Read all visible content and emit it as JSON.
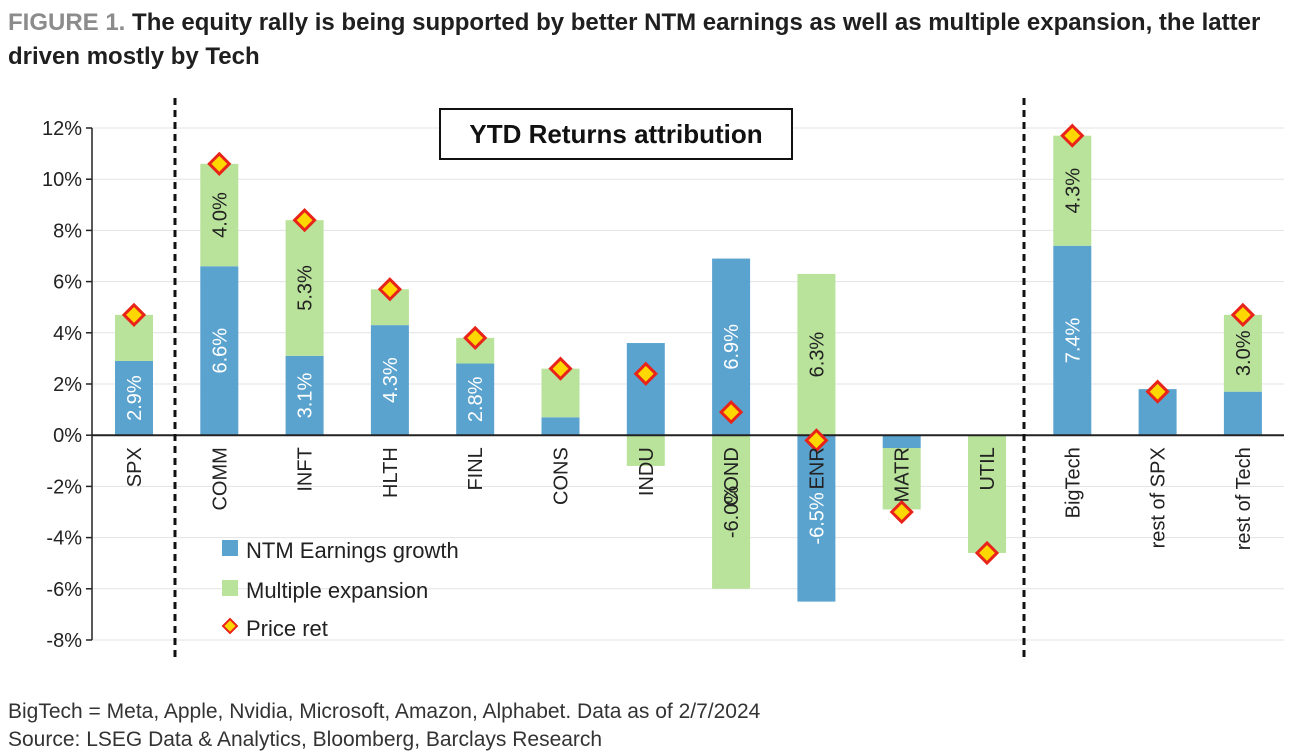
{
  "title": {
    "figure_label": "FIGURE 1.",
    "text": "The equity rally is being supported by better NTM earnings as well as multiple expansion, the latter driven mostly by Tech"
  },
  "footer": {
    "note": "BigTech = Meta, Apple, Nvidia, Microsoft, Amazon, Alphabet. Data as of 2/7/2024",
    "source": "Source: LSEG Data & Analytics, Bloomberg, Barclays Research"
  },
  "colors": {
    "earnings": "#5ba3cf",
    "multiple": "#b9e29b",
    "price_fill": "#ffd700",
    "price_stroke": "#e8241a",
    "grid": "#e3e3e3",
    "axis": "#222222"
  },
  "chart_data": {
    "type": "bar",
    "subtype": "stacked-bar-with-markers",
    "title": "YTD Returns attribution",
    "categories": [
      "SPX",
      "COMM",
      "INFT",
      "HLTH",
      "FINL",
      "CONS",
      "INDU",
      "COND",
      "ENR",
      "MATR",
      "UTIL",
      "BigTech",
      "rest of SPX",
      "rest of Tech"
    ],
    "series": [
      {
        "name": "NTM Earnings growth",
        "kind": "bar",
        "values": [
          2.9,
          6.6,
          3.1,
          4.3,
          2.8,
          0.7,
          3.6,
          6.9,
          -6.5,
          -0.5,
          0.0,
          7.4,
          1.8,
          1.7
        ]
      },
      {
        "name": "Multiple expansion",
        "kind": "bar",
        "values": [
          1.8,
          4.0,
          5.3,
          1.4,
          1.0,
          1.9,
          -1.2,
          -6.0,
          6.3,
          -2.4,
          -4.6,
          4.3,
          0.0,
          3.0
        ]
      },
      {
        "name": "Price ret",
        "kind": "marker",
        "values": [
          4.7,
          10.6,
          8.4,
          5.7,
          3.8,
          2.6,
          2.4,
          0.9,
          -0.2,
          -3.0,
          -4.6,
          11.7,
          1.7,
          4.7
        ]
      }
    ],
    "data_labels": {
      "earnings": [
        "2.9%",
        "6.6%",
        "3.1%",
        "4.3%",
        "2.8%",
        "",
        "",
        "6.9%",
        "-6.5%",
        "",
        "",
        "7.4%",
        "",
        ""
      ],
      "multiple": [
        "",
        "4.0%",
        "5.3%",
        "",
        "",
        "",
        "",
        "-6.0%",
        "6.3%",
        "",
        "",
        "4.3%",
        "",
        "3.0%"
      ]
    },
    "ylim": [
      -8,
      12
    ],
    "yticks": [
      12,
      10,
      8,
      6,
      4,
      2,
      0,
      -2,
      -4,
      -6,
      -8
    ],
    "ytick_labels": [
      "12%",
      "10%",
      "8%",
      "6%",
      "4%",
      "2%",
      "0%",
      "-2%",
      "-4%",
      "-6%",
      "-8%"
    ],
    "xlabel": "",
    "ylabel": "",
    "grid": true,
    "legend_position": "bottom-left",
    "dividers": [
      "after SPX",
      "after UTIL"
    ]
  }
}
